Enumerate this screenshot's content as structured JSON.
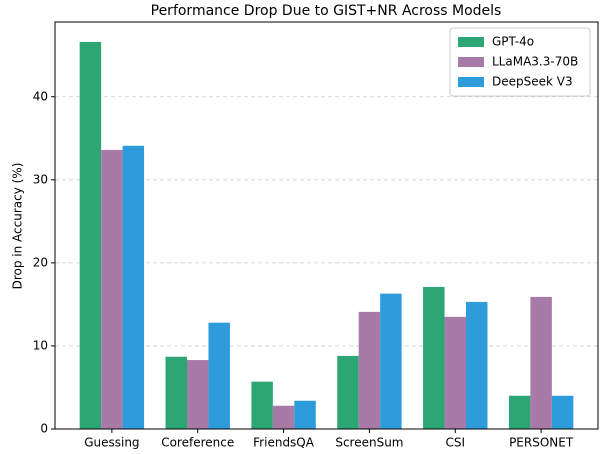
{
  "chart_data": {
    "type": "bar",
    "title": "Performance Drop Due to GIST+NR Across Models",
    "y_label": "Drop in Accuracy (%)",
    "categories": [
      "Guessing",
      "Coreference",
      "FriendsQA",
      "ScreenSum",
      "CSI",
      "PERSONET"
    ],
    "series": [
      {
        "name": "GPT-4o",
        "color": "#2ca673",
        "values": [
          46.6,
          8.7,
          5.7,
          8.8,
          17.1,
          4.0
        ]
      },
      {
        "name": "LLaMA3.3-70B",
        "color": "#a77aa8",
        "values": [
          33.6,
          8.3,
          2.8,
          14.1,
          13.5,
          15.9
        ]
      },
      {
        "name": "DeepSeek V3",
        "color": "#2e9bdb",
        "values": [
          34.1,
          12.8,
          3.4,
          16.3,
          15.3,
          4.0
        ]
      }
    ],
    "ylim": [
      0,
      49
    ],
    "yticks": [
      0,
      10,
      20,
      30,
      40
    ],
    "grid": true,
    "legend": "upper right"
  }
}
